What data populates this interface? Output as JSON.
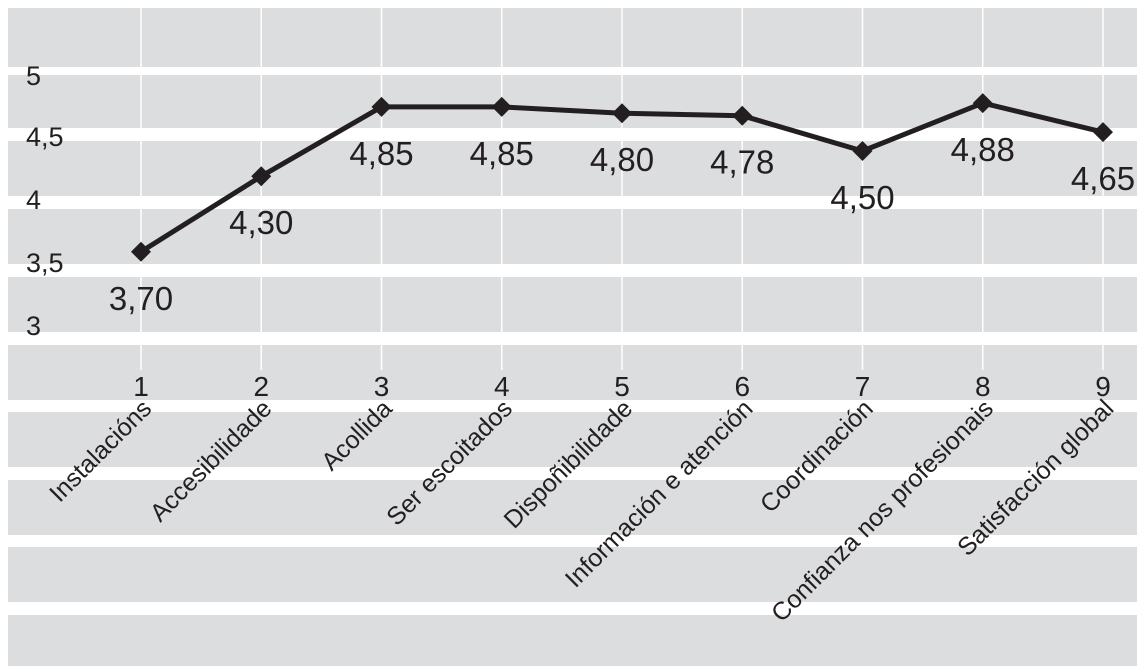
{
  "chart_data": {
    "type": "line",
    "title": "",
    "xlabel": "",
    "ylabel": "",
    "x": [
      "1",
      "2",
      "3",
      "4",
      "5",
      "6",
      "7",
      "8",
      "9"
    ],
    "categories": [
      "Instalacións",
      "Accesibilidade",
      "Acollida",
      "Ser escoitados",
      "Dispoñibilidade",
      "Información e atención",
      "Coordinación",
      "Confianza nos profesionais",
      "Satisfacción global"
    ],
    "values": [
      3.7,
      4.3,
      4.85,
      4.85,
      4.8,
      4.78,
      4.5,
      4.88,
      4.65
    ],
    "data_labels": [
      "3,70",
      "4,30",
      "4,85",
      "4,85",
      "4,80",
      "4,78",
      "4,50",
      "4,88",
      "4,65"
    ],
    "yticks": [
      "3",
      "3,5",
      "4",
      "4,5",
      "5"
    ],
    "ylim": [
      3,
      5
    ],
    "grid": true,
    "legend": "none",
    "colors": {
      "band": "#dcdddf",
      "line": "#231f20",
      "gridline": "#ffffff"
    }
  }
}
